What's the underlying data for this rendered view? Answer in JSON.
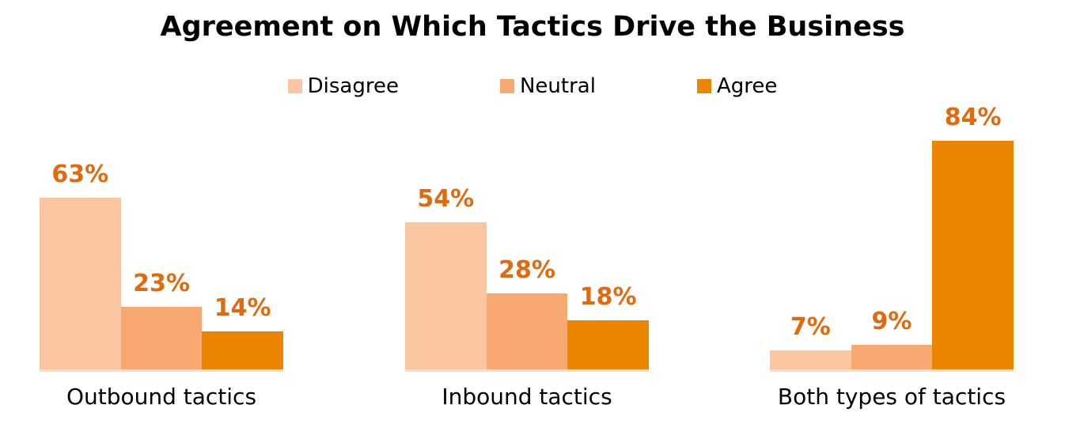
{
  "title": "Agreement on Which Tactics Drive the Business",
  "chart_data": {
    "type": "bar",
    "title": "Agreement on Which Tactics Drive the Business",
    "categories": [
      "Outbound tactics",
      "Inbound tactics",
      "Both types of tactics"
    ],
    "series": [
      {
        "name": "Disagree",
        "color": "#FBC7A3",
        "values": [
          63,
          54,
          7
        ]
      },
      {
        "name": "Neutral",
        "color": "#F8A971",
        "values": [
          23,
          28,
          9
        ]
      },
      {
        "name": "Agree",
        "color": "#EB8500",
        "values": [
          14,
          18,
          84
        ]
      }
    ],
    "value_suffix": "%",
    "data_labels": true,
    "label_color": "#E16A0F",
    "baseline_color": "#FBDCC5",
    "ylim": [
      0,
      100
    ],
    "grid": false,
    "legend_position": "top",
    "axis_labels_color": "#000000"
  }
}
